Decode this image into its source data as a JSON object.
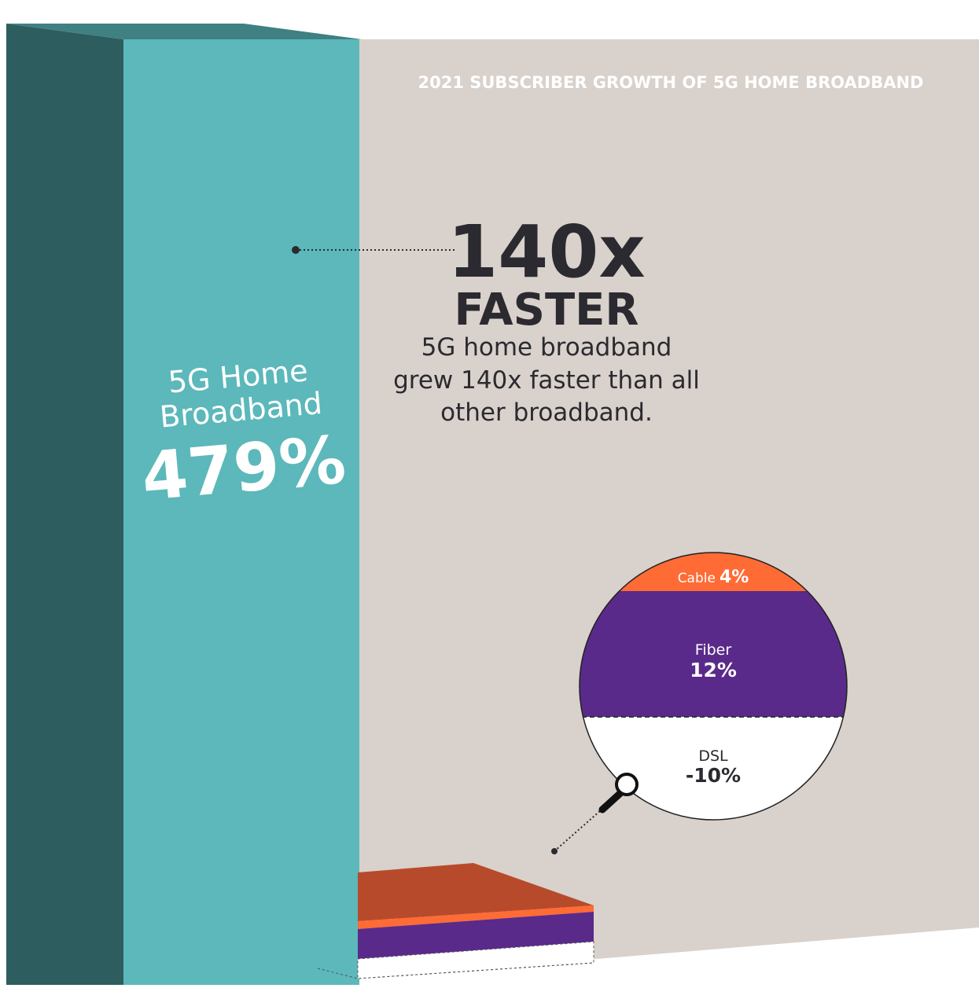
{
  "title": "2021 SUBSCRIBER GROWTH OF 5G HOME BROADBAND",
  "callout": {
    "headline_number": "140x",
    "headline_word": "FASTER",
    "body_lines": [
      "5G home broadband",
      "grew 140x faster than all",
      "other broadband."
    ]
  },
  "main_bar": {
    "label_line1": "5G Home",
    "label_line2": "Broadband",
    "value_text": "479%"
  },
  "zoom": {
    "cable_label": "Cable",
    "cable_value": "4%",
    "fiber_label": "Fiber",
    "fiber_value": "12%",
    "dsl_label": "DSL",
    "dsl_value": "-10%"
  },
  "colors": {
    "background_panel": "#d9d1cb",
    "teal_front": "#5cb8ba",
    "teal_side": "#2e5d5f",
    "teal_top": "#3f8082",
    "cable": "#ff6b35",
    "cable_dark": "#b84a2c",
    "fiber": "#5a2a8a",
    "text_dark": "#2b2a30",
    "white": "#ffffff"
  },
  "chart_data": {
    "type": "bar",
    "title": "2021 SUBSCRIBER GROWTH OF 5G HOME BROADBAND",
    "categories": [
      "5G Home Broadband",
      "Cable",
      "Fiber",
      "DSL"
    ],
    "values": [
      479,
      4,
      12,
      -10
    ],
    "unit": "%"
  }
}
